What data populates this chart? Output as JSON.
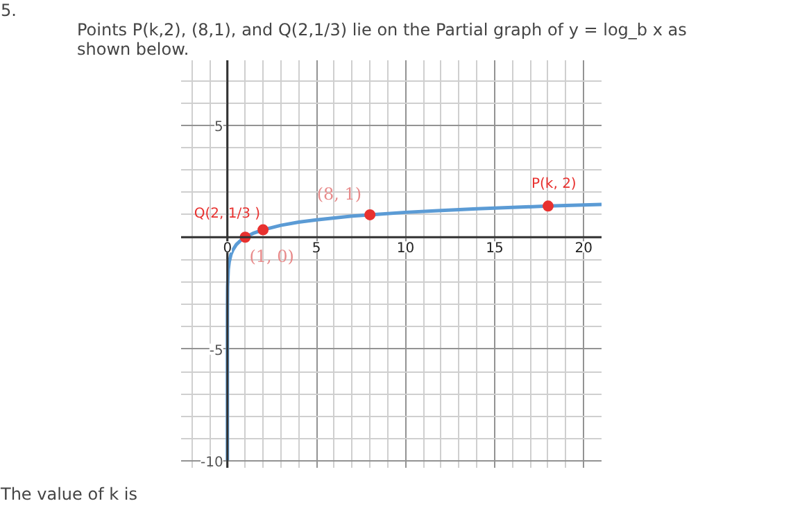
{
  "chart_data": {
    "type": "line",
    "title": "Points P(k,2), (8,1), and Q(2,1/3) lie on the Partial graph of y = log_b x as\nshown below.",
    "annotations": [
      "5.",
      "The value of k is",
      {
        "text": "P(k, 2)",
        "x": 18,
        "y": 1.39
      },
      {
        "text": "Q(2, 1/3 )",
        "x": 2,
        "y": 0.33
      },
      {
        "text": "(8, 1)",
        "x": 8,
        "y": 1
      },
      {
        "text": "(1, 0)",
        "x": 1,
        "y": 0
      }
    ],
    "series": [
      {
        "color": "#5b9bd5",
        "x": [
          1e-09,
          1e-06,
          0.0001,
          0.001,
          0.01,
          0.05,
          0.1,
          0.2,
          0.3,
          0.5,
          0.75,
          1,
          1.5,
          2,
          3,
          4,
          5,
          6,
          7,
          8,
          10,
          12,
          14,
          16,
          18,
          20,
          21
        ],
        "values": [
          -9.97,
          -6.64,
          -4.43,
          -3.32,
          -2.21,
          -1.44,
          -1.11,
          -0.77,
          -0.58,
          -0.33,
          -0.14,
          0,
          0.19,
          0.33,
          0.53,
          0.67,
          0.77,
          0.86,
          0.94,
          1,
          1.11,
          1.19,
          1.27,
          1.33,
          1.39,
          1.44,
          1.46
        ]
      },
      {
        "type": "scatter",
        "marker": "circle",
        "color": "#e8312f",
        "x": [
          1,
          2,
          8,
          18
        ],
        "values": [
          0,
          0.33,
          1,
          1.39
        ]
      }
    ],
    "xlim": [
      -2.6,
      21
    ],
    "ylim": [
      -10.3,
      7.9
    ],
    "xticks": [
      0,
      5,
      10,
      15,
      20
    ],
    "yticks": [
      5,
      -5,
      -10
    ],
    "grid": true,
    "line_style": "solid"
  }
}
